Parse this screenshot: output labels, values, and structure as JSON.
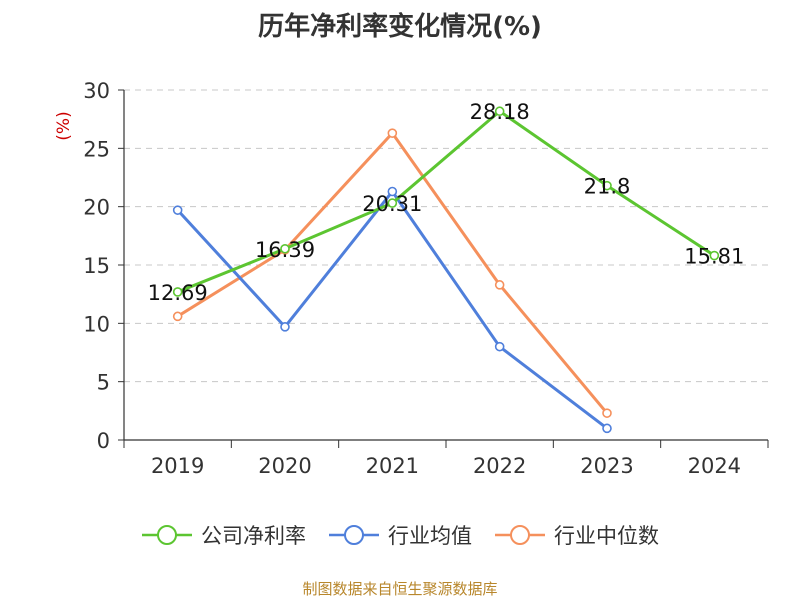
{
  "chart_data": {
    "type": "line",
    "title": "历年净利率变化情况(%)",
    "ylabel": "(%)",
    "xlabel": "",
    "categories": [
      "2019",
      "2020",
      "2021",
      "2022",
      "2023",
      "2024"
    ],
    "ylim": [
      0,
      30
    ],
    "yticks": [
      0,
      5,
      10,
      15,
      20,
      25,
      30
    ],
    "grid": true,
    "legend_position": "bottom",
    "series": [
      {
        "name": "公司净利率",
        "color": "#5cc531",
        "values": [
          12.69,
          16.39,
          20.31,
          28.18,
          21.8,
          15.81
        ],
        "labels": [
          "12.69",
          "16.39",
          "20.31",
          "28.18",
          "21.8",
          "15.81"
        ]
      },
      {
        "name": "行业均值",
        "color": "#4f7fdb",
        "values": [
          19.7,
          9.7,
          21.3,
          8.0,
          1.0,
          null
        ]
      },
      {
        "name": "行业中位数",
        "color": "#f5905c",
        "values": [
          10.6,
          16.3,
          26.3,
          13.3,
          2.3,
          null
        ]
      }
    ]
  },
  "source": "制图数据来自恒生聚源数据库"
}
